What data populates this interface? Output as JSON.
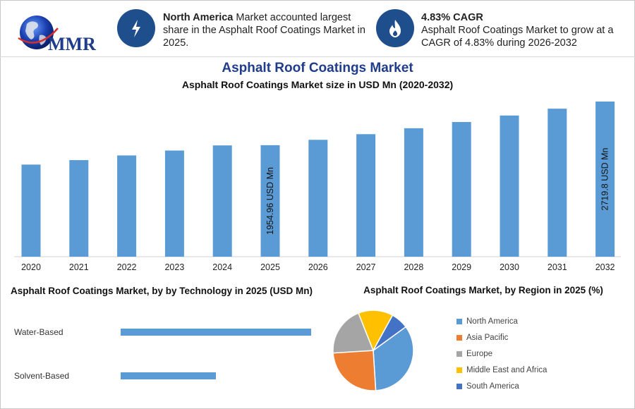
{
  "logo": {
    "text": "MMR"
  },
  "stats": [
    {
      "bold": "North America",
      "text": " Market accounted largest share in the Asphalt Roof Coatings Market in 2025.",
      "icon": "lightning-icon"
    },
    {
      "bold": "4.83% CAGR",
      "text": "Asphalt Roof Coatings Market to grow at a CAGR of 4.83% during 2026-2032",
      "icon": "flame-icon"
    }
  ],
  "header": {
    "title": "Asphalt Roof Coatings Market"
  },
  "chart_data": [
    {
      "type": "bar",
      "title": "Asphalt Roof Coatings Market size in USD Mn (2020-2032)",
      "categories": [
        "2020",
        "2021",
        "2022",
        "2023",
        "2024",
        "2025",
        "2026",
        "2027",
        "2028",
        "2029",
        "2030",
        "2031",
        "2032"
      ],
      "values": [
        1615,
        1693,
        1775,
        1861,
        1951,
        1954.96,
        2049,
        2148,
        2252,
        2361,
        2475,
        2595,
        2719.8
      ],
      "data_labels": [
        {
          "category": "2025",
          "text": "1954.96 USD Mn"
        },
        {
          "category": "2032",
          "text": "2719.8 USD Mn"
        }
      ],
      "color": "#5b9bd5"
    },
    {
      "type": "bar",
      "orientation": "horizontal",
      "title": "Asphalt Roof Coatings Market, by by Technology in 2025 (USD Mn)",
      "categories": [
        "Water-Based",
        "Solvent-Based"
      ],
      "values": [
        1320,
        660
      ],
      "color": "#5b9bd5"
    },
    {
      "type": "pie",
      "title": "Asphalt Roof Coatings Market, by Region in 2025 (%)",
      "categories": [
        "North America",
        "Asia Pacific",
        "Europe",
        "Middle East and Africa",
        "South America"
      ],
      "values": [
        34,
        25,
        20,
        14,
        7
      ],
      "colors": [
        "#5b9bd5",
        "#ed7d31",
        "#a5a5a5",
        "#ffc000",
        "#4472c4"
      ],
      "legend": "right"
    }
  ]
}
